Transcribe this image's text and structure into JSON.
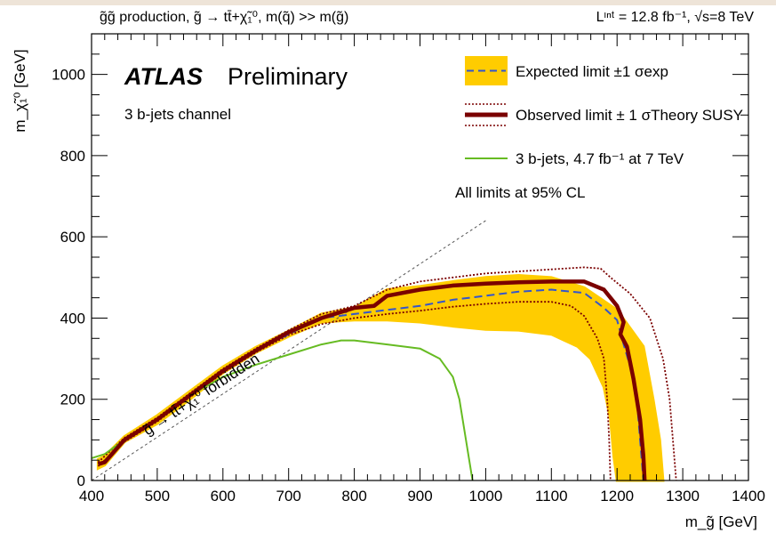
{
  "chart_data": {
    "type": "line",
    "header_left": "g̃g̃  production, g̃ → tt̄+χ̃₁⁰, m(q̃) >> m(g̃)",
    "header_right": "Lᶦⁿᵗ = 12.8 fb⁻¹, √s=8 TeV",
    "title_atlas": "ATLAS",
    "title_prelim": "Preliminary",
    "channel": "3 b-jets channel",
    "cl_note": "All limits at 95% CL",
    "forbidden_label": "g̃ → tt̄+χ̃₁⁰ forbidden",
    "xlabel": "m_g̃ [GeV]",
    "ylabel": "m_χ̃₁⁰ [GeV]",
    "xlim": [
      400,
      1400
    ],
    "ylim": [
      0,
      1100
    ],
    "x_ticks": [
      400,
      500,
      600,
      700,
      800,
      900,
      1000,
      1100,
      1200,
      1300,
      1400
    ],
    "y_ticks": [
      0,
      200,
      400,
      600,
      800,
      1000
    ],
    "legend": [
      {
        "label": "Expected limit ±1 σexp",
        "kind": "band",
        "color": "#ffcc00",
        "line_color": "#3355cc"
      },
      {
        "label": "Observed limit ± 1 σTheory SUSY",
        "kind": "observed",
        "color": "#7a0000"
      },
      {
        "label": "3 b-jets, 4.7 fb⁻¹ at 7 TeV",
        "kind": "line",
        "color": "#66bb22"
      }
    ],
    "colors": {
      "band": "#ffcc00",
      "expected": "#3355cc",
      "observed": "#7a0000",
      "theory": "#7a0000",
      "old7tev": "#66bb22",
      "diagonal": "#555555"
    },
    "diagonal": [
      [
        400,
        0
      ],
      [
        1000,
        640
      ]
    ],
    "series": [
      {
        "name": "Expected limit",
        "role": "expected",
        "points": [
          [
            410,
            40
          ],
          [
            420,
            45
          ],
          [
            450,
            100
          ],
          [
            500,
            150
          ],
          [
            550,
            210
          ],
          [
            600,
            270
          ],
          [
            650,
            320
          ],
          [
            700,
            360
          ],
          [
            750,
            400
          ],
          [
            800,
            410
          ],
          [
            850,
            420
          ],
          [
            900,
            430
          ],
          [
            950,
            445
          ],
          [
            1000,
            455
          ],
          [
            1050,
            465
          ],
          [
            1100,
            470
          ],
          [
            1150,
            462
          ],
          [
            1180,
            425
          ],
          [
            1200,
            395
          ],
          [
            1210,
            335
          ],
          [
            1220,
            280
          ],
          [
            1230,
            200
          ],
          [
            1235,
            100
          ],
          [
            1240,
            0
          ]
        ]
      },
      {
        "name": "Expected −1σ",
        "role": "band_low",
        "points": [
          [
            410,
            30
          ],
          [
            420,
            38
          ],
          [
            450,
            95
          ],
          [
            500,
            140
          ],
          [
            550,
            200
          ],
          [
            600,
            265
          ],
          [
            650,
            315
          ],
          [
            700,
            355
          ],
          [
            750,
            390
          ],
          [
            800,
            395
          ],
          [
            850,
            395
          ],
          [
            900,
            390
          ],
          [
            950,
            380
          ],
          [
            1000,
            372
          ],
          [
            1050,
            370
          ],
          [
            1100,
            360
          ],
          [
            1140,
            330
          ],
          [
            1160,
            300
          ],
          [
            1180,
            230
          ],
          [
            1190,
            150
          ],
          [
            1195,
            60
          ],
          [
            1200,
            0
          ]
        ]
      },
      {
        "name": "Expected +1σ",
        "role": "band_high",
        "points": [
          [
            410,
            52
          ],
          [
            420,
            60
          ],
          [
            450,
            108
          ],
          [
            500,
            160
          ],
          [
            550,
            220
          ],
          [
            600,
            280
          ],
          [
            650,
            328
          ],
          [
            700,
            368
          ],
          [
            750,
            410
          ],
          [
            800,
            425
          ],
          [
            850,
            470
          ],
          [
            900,
            478
          ],
          [
            950,
            490
          ],
          [
            1000,
            500
          ],
          [
            1050,
            505
          ],
          [
            1100,
            500
          ],
          [
            1150,
            475
          ],
          [
            1200,
            420
          ],
          [
            1240,
            330
          ],
          [
            1255,
            200
          ],
          [
            1265,
            100
          ],
          [
            1270,
            0
          ]
        ]
      },
      {
        "name": "Observed limit",
        "role": "observed",
        "points": [
          [
            410,
            40
          ],
          [
            420,
            45
          ],
          [
            450,
            100
          ],
          [
            500,
            150
          ],
          [
            550,
            210
          ],
          [
            600,
            270
          ],
          [
            650,
            320
          ],
          [
            700,
            365
          ],
          [
            750,
            400
          ],
          [
            800,
            425
          ],
          [
            830,
            430
          ],
          [
            850,
            455
          ],
          [
            900,
            470
          ],
          [
            950,
            480
          ],
          [
            1000,
            485
          ],
          [
            1050,
            488
          ],
          [
            1100,
            490
          ],
          [
            1150,
            490
          ],
          [
            1180,
            470
          ],
          [
            1200,
            430
          ],
          [
            1210,
            390
          ],
          [
            1205,
            360
          ],
          [
            1215,
            330
          ],
          [
            1225,
            250
          ],
          [
            1235,
            150
          ],
          [
            1240,
            60
          ],
          [
            1242,
            0
          ]
        ]
      },
      {
        "name": "Observed −1σ theory",
        "role": "theory_low",
        "points": [
          [
            410,
            35
          ],
          [
            450,
            95
          ],
          [
            500,
            145
          ],
          [
            550,
            205
          ],
          [
            600,
            265
          ],
          [
            650,
            315
          ],
          [
            700,
            358
          ],
          [
            750,
            385
          ],
          [
            800,
            400
          ],
          [
            850,
            410
          ],
          [
            900,
            418
          ],
          [
            950,
            428
          ],
          [
            1000,
            435
          ],
          [
            1050,
            440
          ],
          [
            1100,
            440
          ],
          [
            1130,
            430
          ],
          [
            1150,
            405
          ],
          [
            1170,
            350
          ],
          [
            1180,
            300
          ],
          [
            1185,
            200
          ],
          [
            1188,
            100
          ],
          [
            1190,
            0
          ]
        ]
      },
      {
        "name": "Observed +1σ theory",
        "role": "theory_high",
        "points": [
          [
            410,
            45
          ],
          [
            450,
            105
          ],
          [
            500,
            155
          ],
          [
            550,
            215
          ],
          [
            600,
            275
          ],
          [
            650,
            325
          ],
          [
            700,
            370
          ],
          [
            750,
            410
          ],
          [
            800,
            430
          ],
          [
            850,
            470
          ],
          [
            900,
            490
          ],
          [
            950,
            500
          ],
          [
            1000,
            510
          ],
          [
            1050,
            515
          ],
          [
            1100,
            520
          ],
          [
            1150,
            525
          ],
          [
            1175,
            522
          ],
          [
            1190,
            500
          ],
          [
            1220,
            460
          ],
          [
            1250,
            400
          ],
          [
            1270,
            300
          ],
          [
            1280,
            200
          ],
          [
            1285,
            100
          ],
          [
            1290,
            0
          ]
        ]
      },
      {
        "name": "3 b-jets, 4.7 fb⁻¹ at 7 TeV",
        "role": "old7tev",
        "points": [
          [
            400,
            55
          ],
          [
            420,
            65
          ],
          [
            450,
            100
          ],
          [
            500,
            150
          ],
          [
            550,
            210
          ],
          [
            600,
            255
          ],
          [
            650,
            285
          ],
          [
            700,
            310
          ],
          [
            750,
            335
          ],
          [
            780,
            345
          ],
          [
            800,
            345
          ],
          [
            850,
            335
          ],
          [
            900,
            325
          ],
          [
            930,
            300
          ],
          [
            950,
            255
          ],
          [
            960,
            200
          ],
          [
            965,
            150
          ],
          [
            970,
            100
          ],
          [
            975,
            50
          ],
          [
            980,
            0
          ]
        ]
      }
    ]
  }
}
